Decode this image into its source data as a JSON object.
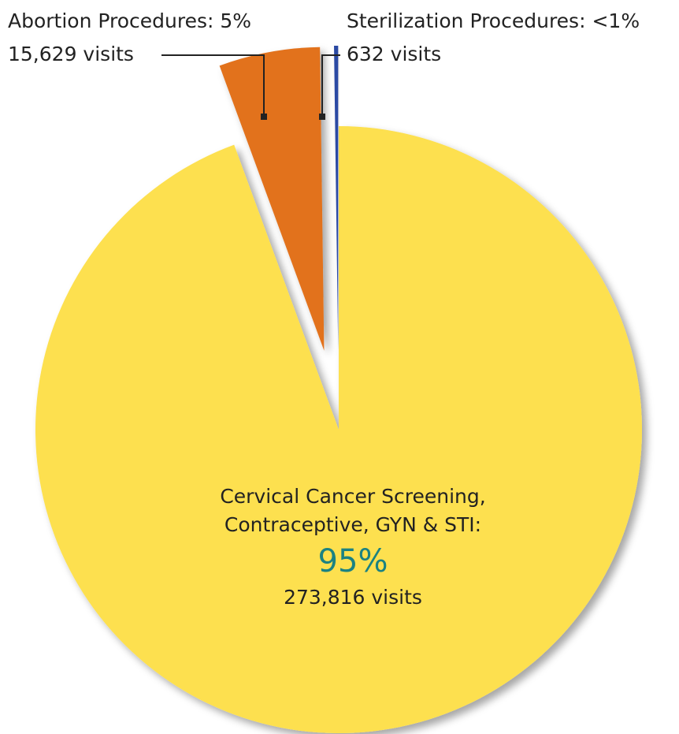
{
  "chart_data": {
    "type": "pie",
    "categories": [
      "Cervical Cancer Screening, Contraceptive, GYN & STI:",
      "Abortion Procedures:",
      "Sterilization Procedures:"
    ],
    "values": [
      273816,
      15629,
      632
    ],
    "value_labels": [
      "273,816 visits",
      "15,629 visits",
      "632 visits"
    ],
    "percent_labels": [
      "95%",
      "5%",
      "<1%"
    ],
    "colors": [
      "#fde04f",
      "#e2721f",
      "#2b48a3"
    ],
    "exploded": [
      false,
      true,
      true
    ]
  }
}
